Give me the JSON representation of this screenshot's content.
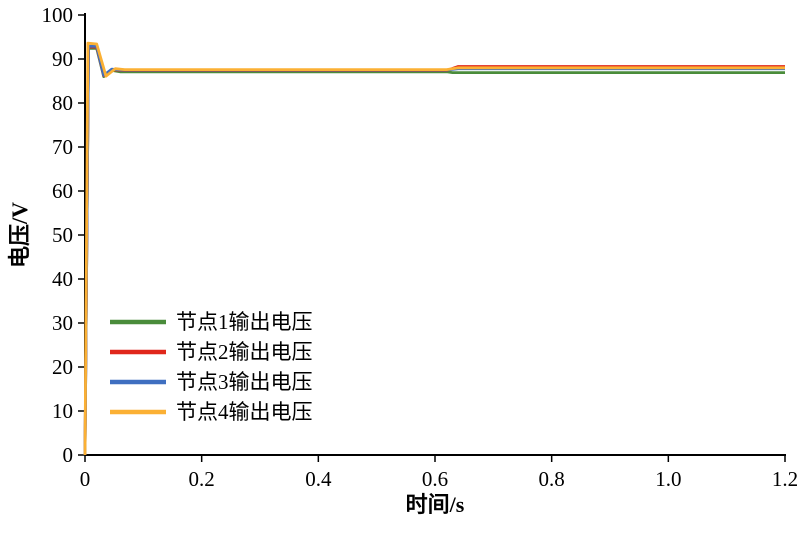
{
  "chart_data": {
    "type": "line",
    "title": "",
    "xlabel": "时间/s",
    "ylabel": "电压/V",
    "xlim": [
      0,
      1.2
    ],
    "ylim": [
      0,
      100
    ],
    "grid": false,
    "legend_position": "lower-left-inside",
    "xticks": [
      0,
      0.2,
      0.4,
      0.6,
      0.8,
      1.0,
      1.2
    ],
    "xtick_labels": [
      "0",
      "0.2",
      "0.4",
      "0.6",
      "0.8",
      "1.0",
      "1.2"
    ],
    "yticks": [
      0,
      10,
      20,
      30,
      40,
      50,
      60,
      70,
      80,
      90,
      100
    ],
    "ytick_labels": [
      "0",
      "10",
      "20",
      "30",
      "40",
      "50",
      "60",
      "70",
      "80",
      "90",
      "100"
    ],
    "series": [
      {
        "name": "节点1输出电压",
        "color": "#4a8c3b",
        "points": [
          [
            0,
            0
          ],
          [
            0.006,
            92.4
          ],
          [
            0.02,
            92.4
          ],
          [
            0.032,
            86.0
          ],
          [
            0.046,
            87.4
          ],
          [
            0.06,
            87.1
          ],
          [
            0.62,
            87.1
          ],
          [
            0.63,
            86.9
          ],
          [
            1.2,
            86.9
          ]
        ]
      },
      {
        "name": "节点2输出电压",
        "color": "#e0271b",
        "points": [
          [
            0,
            0
          ],
          [
            0.006,
            92.7
          ],
          [
            0.02,
            92.7
          ],
          [
            0.032,
            86.2
          ],
          [
            0.046,
            87.6
          ],
          [
            0.06,
            87.4
          ],
          [
            0.62,
            87.4
          ],
          [
            0.64,
            88.3
          ],
          [
            1.2,
            88.3
          ]
        ]
      },
      {
        "name": "节点3输出电压",
        "color": "#3f6fc0",
        "points": [
          [
            0,
            0
          ],
          [
            0.006,
            92.9
          ],
          [
            0.02,
            92.9
          ],
          [
            0.032,
            86.3
          ],
          [
            0.046,
            87.7
          ],
          [
            0.06,
            87.5
          ],
          [
            0.62,
            87.5
          ],
          [
            0.64,
            87.8
          ],
          [
            1.2,
            87.8
          ]
        ]
      },
      {
        "name": "节点4输出电压",
        "color": "#fbb034",
        "points": [
          [
            0,
            0
          ],
          [
            0.005,
            93.6
          ],
          [
            0.02,
            93.4
          ],
          [
            0.036,
            86.1
          ],
          [
            0.052,
            87.8
          ],
          [
            0.068,
            87.6
          ],
          [
            0.62,
            87.6
          ],
          [
            0.64,
            88.0
          ],
          [
            1.2,
            88.0
          ]
        ]
      }
    ]
  }
}
